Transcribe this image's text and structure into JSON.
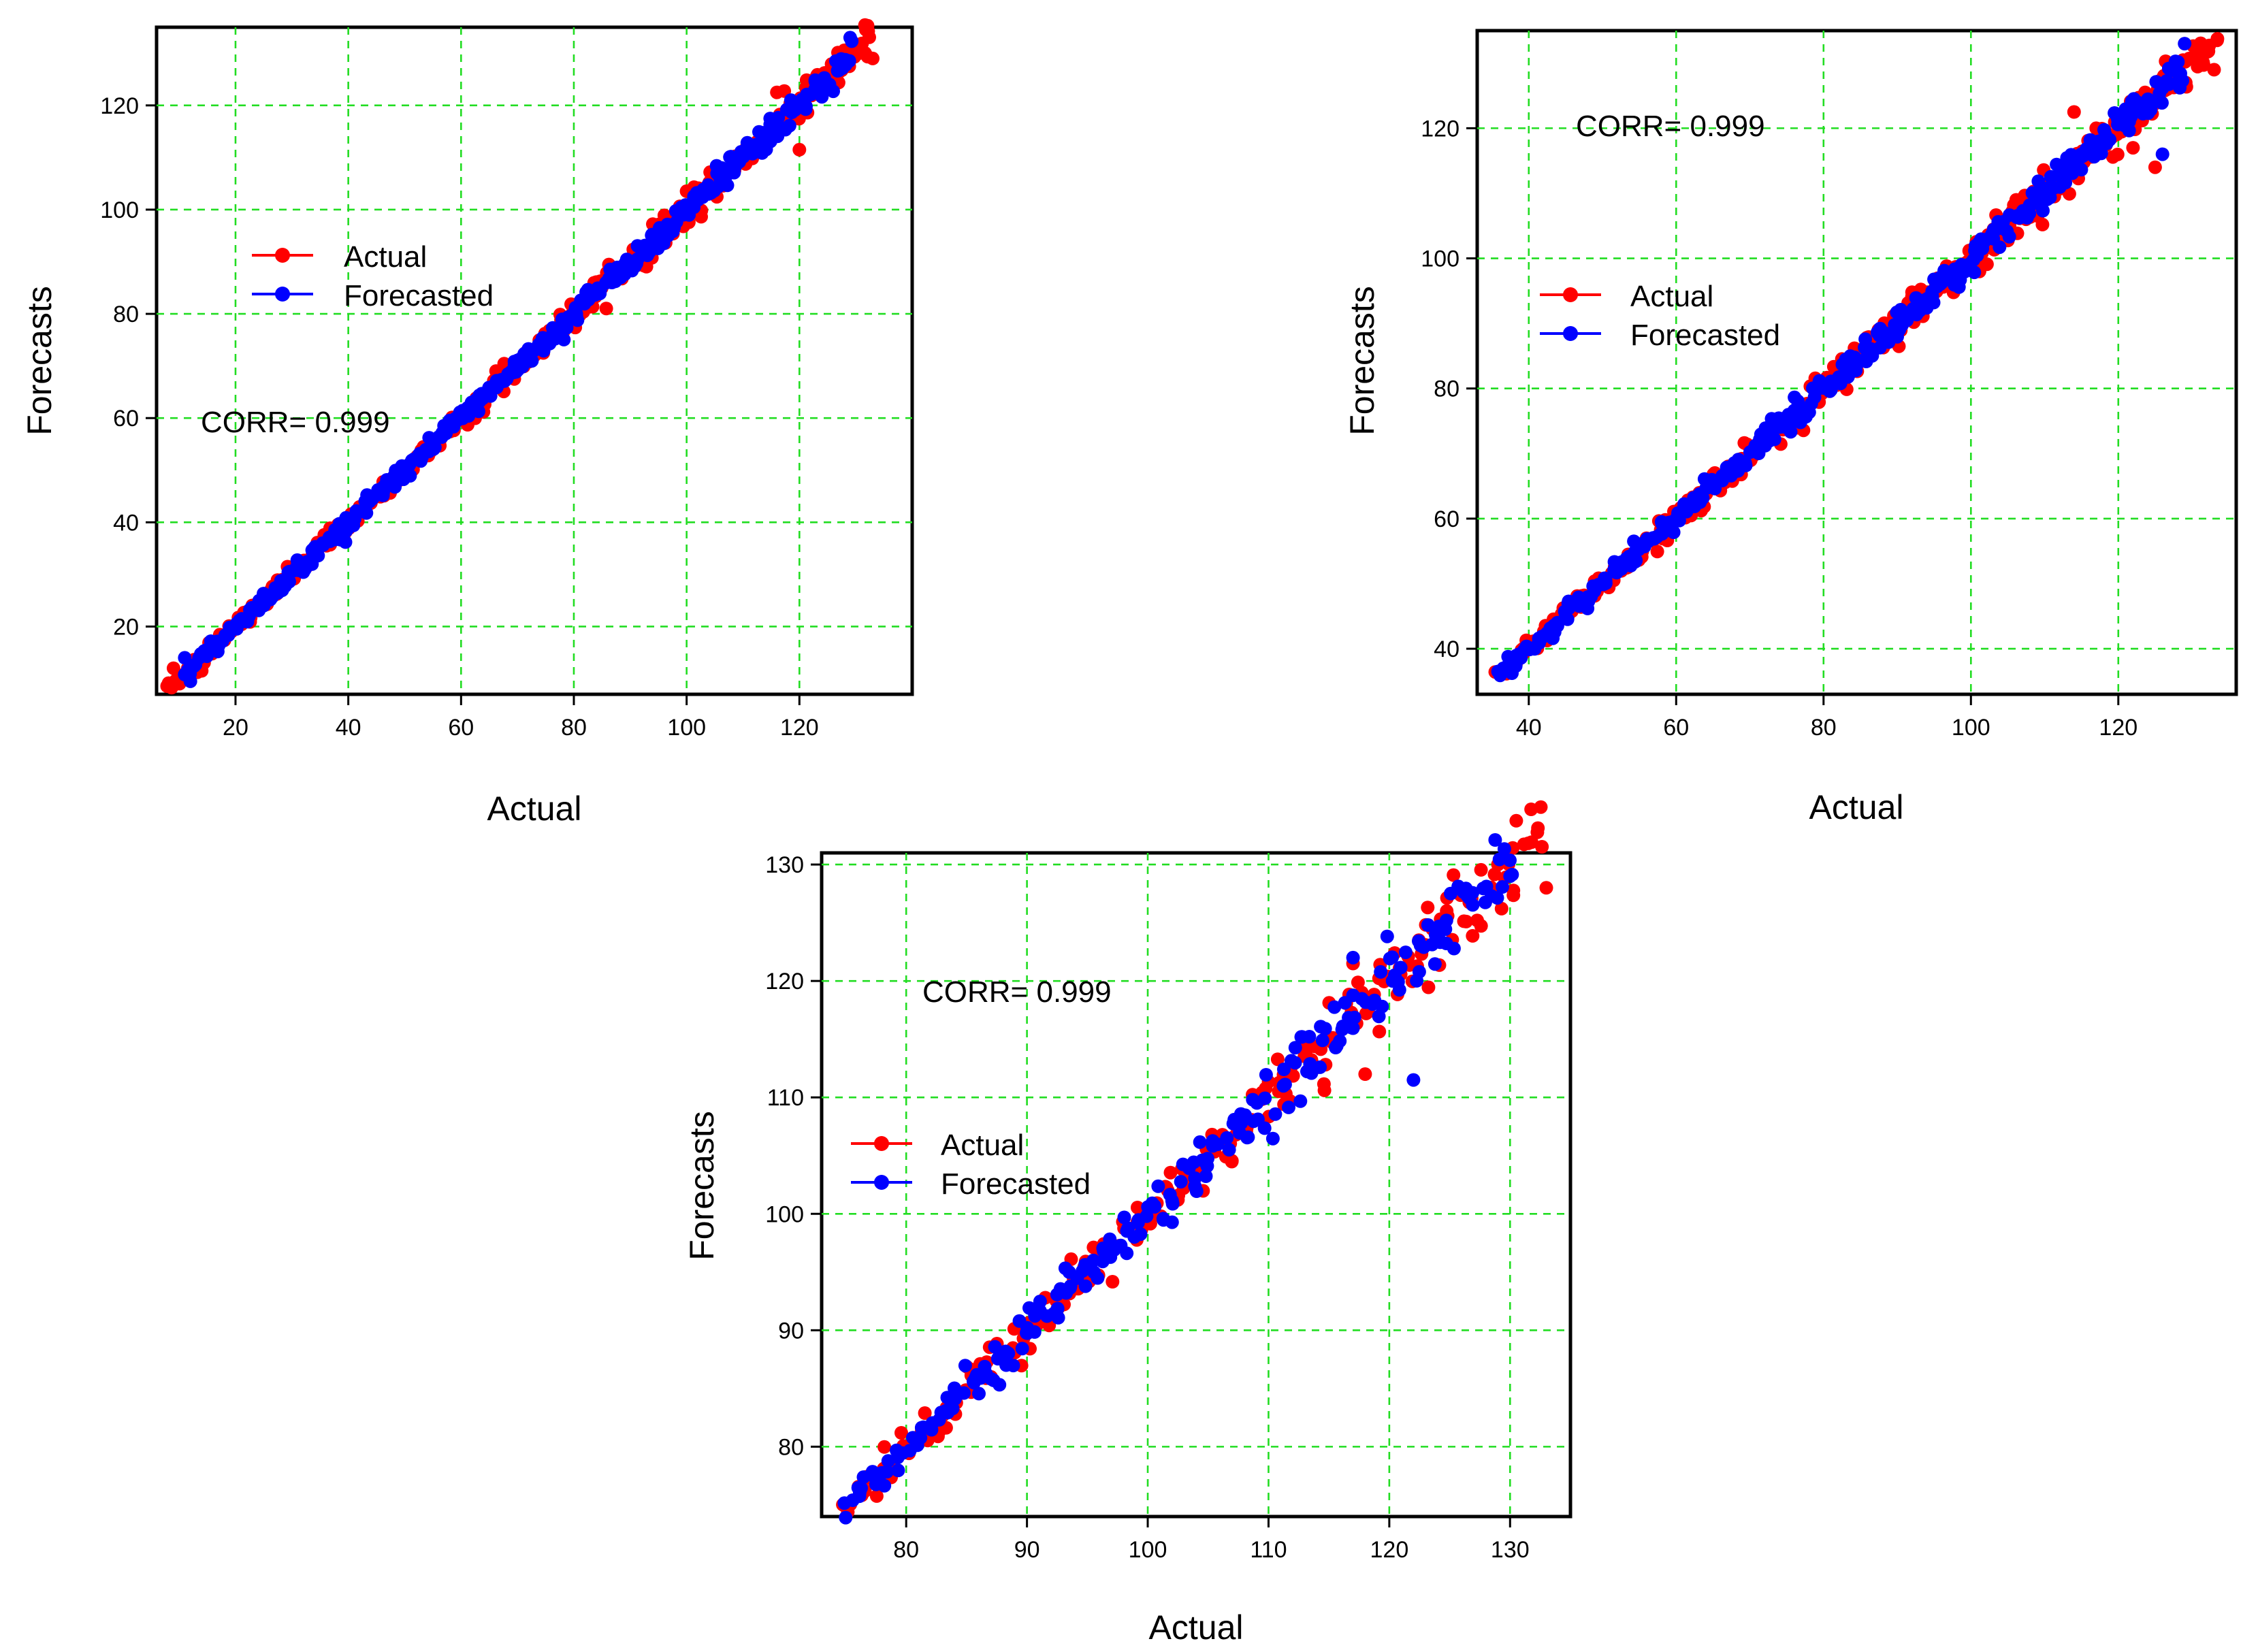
{
  "colors": {
    "actual": "#ff0000",
    "forecasted": "#0000ff",
    "grid": "#22dd22",
    "frame": "#000000"
  },
  "chart_data": [
    {
      "type": "scatter",
      "xlabel": "Actual",
      "ylabel": "Forecasts",
      "xlim": [
        6,
        140
      ],
      "ylim": [
        7,
        135
      ],
      "xticks": [
        20,
        40,
        60,
        80,
        100,
        120
      ],
      "yticks": [
        20,
        40,
        60,
        80,
        100,
        120
      ],
      "xtick_labels": [
        "20",
        "40",
        "60",
        "80",
        "100",
        "120"
      ],
      "ytick_labels": [
        "20",
        "40",
        "60",
        "80",
        "100",
        "120"
      ],
      "annotation": "CORR= 0.999",
      "legend": {
        "position": "upper-left",
        "entries": [
          "Actual",
          "Forecasted"
        ]
      },
      "grid": true,
      "series": [
        {
          "name": "Actual",
          "color": "#ff0000",
          "x_range": [
            8,
            133
          ],
          "n_points": 420,
          "noise": 1.2,
          "outliers": [
            [
              9,
              12
            ],
            [
              14,
              11.5
            ],
            [
              116,
              122.5
            ],
            [
              118,
              117
            ],
            [
              120,
              111.5
            ],
            [
              133,
              129
            ]
          ]
        },
        {
          "name": "Forecasted",
          "color": "#0000ff",
          "x_range": [
            11,
            129
          ],
          "n_points": 420,
          "noise": 1.0,
          "outliers": [
            [
              11,
              14
            ],
            [
              12,
              9.5
            ],
            [
              129,
              133
            ]
          ]
        }
      ]
    },
    {
      "type": "scatter",
      "xlabel": "Actual",
      "ylabel": "Forecasts",
      "xlim": [
        33,
        136
      ],
      "ylim": [
        33,
        135
      ],
      "xticks": [
        40,
        60,
        80,
        100,
        120
      ],
      "yticks": [
        40,
        60,
        80,
        100,
        120
      ],
      "xtick_labels": [
        "40",
        "60",
        "80",
        "100",
        "120"
      ],
      "ytick_labels": [
        "40",
        "60",
        "80",
        "100",
        "120"
      ],
      "annotation": "CORR= 0.999",
      "legend": {
        "position": "middle-left",
        "entries": [
          "Actual",
          "Forecasted"
        ]
      },
      "grid": true,
      "series": [
        {
          "name": "Actual",
          "color": "#ff0000",
          "x_range": [
            36,
            133
          ],
          "n_points": 380,
          "noise": 1.2,
          "outliers": [
            [
              114,
              122.5
            ],
            [
              117,
              120
            ],
            [
              122,
              117
            ],
            [
              125,
              114
            ],
            [
              133,
              129
            ]
          ]
        },
        {
          "name": "Forecasted",
          "color": "#0000ff",
          "x_range": [
            36,
            129
          ],
          "n_points": 380,
          "noise": 1.0,
          "outliers": [
            [
              129,
              133
            ],
            [
              126,
              116
            ]
          ]
        }
      ]
    },
    {
      "type": "scatter",
      "xlabel": "Actual",
      "ylabel": "Forecasts",
      "xlim": [
        73,
        135
      ],
      "ylim": [
        74,
        131
      ],
      "xticks": [
        80,
        90,
        100,
        110,
        120,
        130
      ],
      "yticks": [
        80,
        90,
        100,
        110,
        120,
        130
      ],
      "xtick_labels": [
        "80",
        "90",
        "100",
        "110",
        "120",
        "130"
      ],
      "ytick_labels": [
        "80",
        "90",
        "100",
        "110",
        "120",
        "130"
      ],
      "annotation": "CORR= 0.999",
      "legend": {
        "position": "middle-left",
        "entries": [
          "Actual",
          "Forecasted"
        ]
      },
      "grid": true,
      "series": [
        {
          "name": "Actual",
          "color": "#ff0000",
          "x_range": [
            75,
            133
          ],
          "n_points": 230,
          "noise": 1.3,
          "outliers": [
            [
              118,
              112
            ],
            [
              117,
              121.5
            ],
            [
              133,
              128
            ],
            [
              129,
              130
            ]
          ]
        },
        {
          "name": "Forecasted",
          "color": "#0000ff",
          "x_range": [
            75,
            130
          ],
          "n_points": 230,
          "noise": 1.1,
          "outliers": [
            [
              117,
              122
            ],
            [
              122,
              111.5
            ],
            [
              130,
              129
            ]
          ]
        }
      ]
    }
  ]
}
